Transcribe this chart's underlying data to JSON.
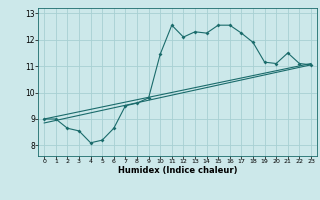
{
  "title": "",
  "xlabel": "Humidex (Indice chaleur)",
  "bg_color": "#cce8ea",
  "grid_color": "#a8d0d3",
  "line_color": "#1a6b6b",
  "xlim": [
    -0.5,
    23.5
  ],
  "ylim": [
    7.6,
    13.2
  ],
  "xticks": [
    0,
    1,
    2,
    3,
    4,
    5,
    6,
    7,
    8,
    9,
    10,
    11,
    12,
    13,
    14,
    15,
    16,
    17,
    18,
    19,
    20,
    21,
    22,
    23
  ],
  "yticks": [
    8,
    9,
    10,
    11,
    12,
    13
  ],
  "line1_x": [
    0,
    1,
    2,
    3,
    4,
    5,
    6,
    7,
    8,
    9,
    10,
    11,
    12,
    13,
    14,
    15,
    16,
    17,
    18,
    19,
    20,
    21,
    22,
    23
  ],
  "line1_y": [
    9.0,
    9.0,
    8.65,
    8.55,
    8.1,
    8.2,
    8.65,
    9.5,
    9.6,
    9.8,
    11.45,
    12.55,
    12.1,
    12.3,
    12.25,
    12.55,
    12.55,
    12.25,
    11.9,
    11.15,
    11.1,
    11.5,
    11.1,
    11.05
  ],
  "line2_x": [
    0,
    23
  ],
  "line2_y": [
    8.85,
    11.05
  ],
  "line3_x": [
    0,
    23
  ],
  "line3_y": [
    9.0,
    11.1
  ]
}
